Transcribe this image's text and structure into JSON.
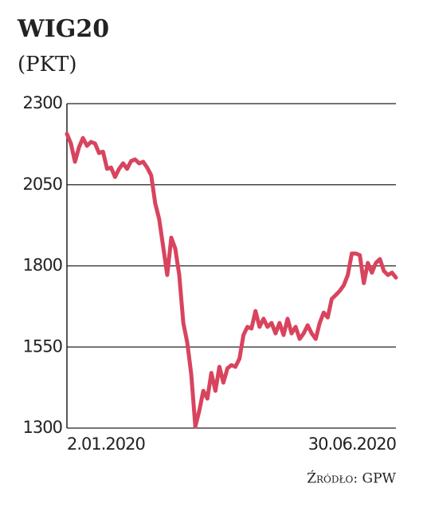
{
  "chart_data": {
    "type": "line",
    "title": "WIG20",
    "subtitle": "(PKT)",
    "source": "Źródło: GPW",
    "categories": [
      "2.01.2020",
      null,
      null,
      null,
      null,
      null,
      null,
      null,
      null,
      null,
      null,
      null,
      null,
      null,
      null,
      null,
      null,
      null,
      null,
      null,
      null,
      null,
      null,
      null,
      null,
      null,
      null,
      null,
      null,
      null,
      null,
      null,
      null,
      null,
      null,
      null,
      null,
      null,
      null,
      null,
      null,
      null,
      null,
      null,
      null,
      null,
      null,
      null,
      null,
      null,
      null,
      null,
      null,
      null,
      null,
      null,
      null,
      null,
      null,
      null,
      null,
      null,
      null,
      null,
      null,
      null,
      null,
      null,
      null,
      null,
      null,
      null,
      null,
      null,
      null,
      null,
      null,
      null,
      null,
      null,
      null,
      null,
      "30.06.2020"
    ],
    "values": [
      2207,
      2177,
      2121,
      2165,
      2194,
      2170,
      2182,
      2177,
      2148,
      2152,
      2099,
      2103,
      2074,
      2099,
      2116,
      2099,
      2123,
      2128,
      2116,
      2121,
      2103,
      2079,
      1993,
      1944,
      1858,
      1772,
      1887,
      1853,
      1772,
      1624,
      1563,
      1465,
      1305,
      1354,
      1415,
      1391,
      1470,
      1415,
      1489,
      1440,
      1484,
      1494,
      1489,
      1514,
      1587,
      1612,
      1607,
      1661,
      1612,
      1637,
      1612,
      1624,
      1592,
      1624,
      1587,
      1637,
      1592,
      1612,
      1575,
      1592,
      1617,
      1592,
      1575,
      1624,
      1656,
      1641,
      1698,
      1710,
      1723,
      1740,
      1772,
      1838,
      1838,
      1833,
      1747,
      1809,
      1779,
      1809,
      1821,
      1784,
      1772,
      1779,
      1764
    ],
    "color": "#d8445e",
    "ylim": [
      1300,
      2300
    ],
    "yticks": [
      1300,
      1550,
      1800,
      2050,
      2300
    ],
    "grid": true
  }
}
